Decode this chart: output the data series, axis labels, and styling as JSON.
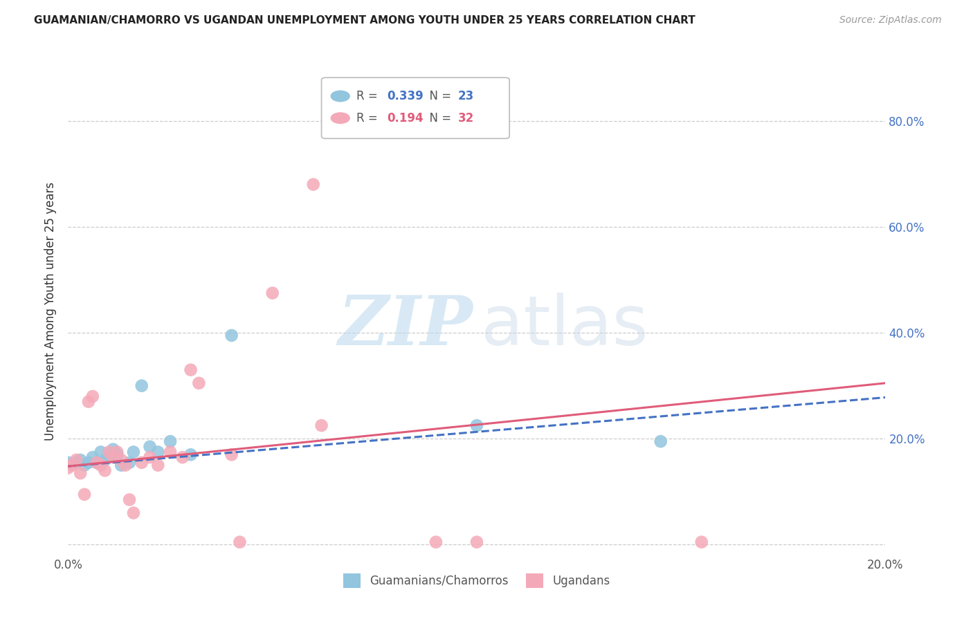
{
  "title": "GUAMANIAN/CHAMORRO VS UGANDAN UNEMPLOYMENT AMONG YOUTH UNDER 25 YEARS CORRELATION CHART",
  "source": "Source: ZipAtlas.com",
  "ylabel": "Unemployment Among Youth under 25 years",
  "legend_blue_R": "0.339",
  "legend_blue_N": "23",
  "legend_pink_R": "0.194",
  "legend_pink_N": "32",
  "legend_label_blue": "Guamanians/Chamorros",
  "legend_label_pink": "Ugandans",
  "xlim": [
    0.0,
    0.2
  ],
  "ylim": [
    -0.02,
    0.9
  ],
  "yticks": [
    0.0,
    0.2,
    0.4,
    0.6,
    0.8
  ],
  "ytick_labels": [
    "",
    "20.0%",
    "40.0%",
    "60.0%",
    "80.0%"
  ],
  "xticks": [
    0.0,
    0.05,
    0.1,
    0.15,
    0.2
  ],
  "xtick_labels": [
    "0.0%",
    "",
    "",
    "",
    "20.0%"
  ],
  "blue_color": "#92c5de",
  "pink_color": "#f4a9b8",
  "blue_line_color": "#4472c4",
  "pink_line_color": "#e05c7a",
  "watermark_zip": "ZIP",
  "watermark_atlas": "atlas",
  "blue_scatter_x": [
    0.0,
    0.002,
    0.003,
    0.004,
    0.005,
    0.006,
    0.007,
    0.008,
    0.009,
    0.01,
    0.011,
    0.012,
    0.013,
    0.015,
    0.016,
    0.018,
    0.02,
    0.022,
    0.025,
    0.03,
    0.04,
    0.1,
    0.145
  ],
  "blue_scatter_y": [
    0.155,
    0.155,
    0.16,
    0.15,
    0.155,
    0.165,
    0.155,
    0.175,
    0.16,
    0.165,
    0.18,
    0.17,
    0.15,
    0.155,
    0.175,
    0.3,
    0.185,
    0.175,
    0.195,
    0.17,
    0.395,
    0.225,
    0.195
  ],
  "pink_scatter_x": [
    0.0,
    0.001,
    0.002,
    0.003,
    0.004,
    0.005,
    0.006,
    0.007,
    0.008,
    0.009,
    0.01,
    0.011,
    0.012,
    0.013,
    0.014,
    0.015,
    0.016,
    0.018,
    0.02,
    0.022,
    0.025,
    0.028,
    0.03,
    0.032,
    0.04,
    0.042,
    0.05,
    0.06,
    0.062,
    0.09,
    0.1,
    0.155
  ],
  "pink_scatter_y": [
    0.145,
    0.15,
    0.16,
    0.135,
    0.095,
    0.27,
    0.28,
    0.155,
    0.15,
    0.14,
    0.175,
    0.165,
    0.175,
    0.16,
    0.15,
    0.085,
    0.06,
    0.155,
    0.165,
    0.15,
    0.175,
    0.165,
    0.33,
    0.305,
    0.17,
    0.005,
    0.475,
    0.68,
    0.225,
    0.005,
    0.005,
    0.005
  ],
  "blue_trend_x0": 0.0,
  "blue_trend_x1": 0.2,
  "blue_trend_y0": 0.148,
  "blue_trend_y1": 0.278,
  "pink_trend_x0": 0.0,
  "pink_trend_x1": 0.2,
  "pink_trend_y0": 0.148,
  "pink_trend_y1": 0.305
}
